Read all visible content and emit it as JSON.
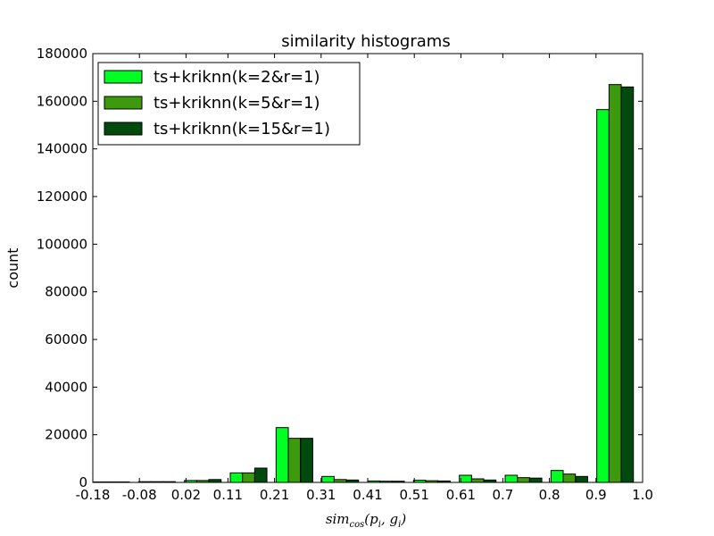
{
  "chart_data": {
    "type": "bar",
    "title": "similarity histograms",
    "xlabel": "sim_cos(p_i, g_i)",
    "xlabel_parts": {
      "base": "sim",
      "base_sub": "cos",
      "open": "(",
      "p": "p",
      "p_sub": "i",
      "comma": ", ",
      "g": "g",
      "g_sub": "i",
      "close": ")"
    },
    "ylabel": "count",
    "xlim": [
      -0.18,
      1.0
    ],
    "ylim": [
      0,
      180000
    ],
    "x_ticks": [
      -0.18,
      -0.08,
      0.02,
      0.11,
      0.21,
      0.31,
      0.41,
      0.51,
      0.61,
      0.7,
      0.8,
      0.9,
      1.0
    ],
    "x_tick_labels": [
      "-0.18",
      "-0.08",
      "0.02",
      "0.11",
      "0.21",
      "0.31",
      "0.41",
      "0.51",
      "0.61",
      "0.7",
      "0.8",
      "0.9",
      "1.0"
    ],
    "y_ticks": [
      0,
      20000,
      40000,
      60000,
      80000,
      100000,
      120000,
      140000,
      160000,
      180000
    ],
    "y_tick_labels": [
      "0",
      "20000",
      "40000",
      "60000",
      "80000",
      "100000",
      "120000",
      "140000",
      "160000",
      "180000"
    ],
    "grid": false,
    "legend_position": "top-left",
    "series": [
      {
        "name": "ts+kriknn(k=2&r=1)",
        "color": "#00ff22",
        "values": [
          200,
          300,
          800,
          4000,
          23000,
          2500,
          600,
          900,
          3000,
          3000,
          5000,
          156500
        ]
      },
      {
        "name": "ts+kriknn(k=5&r=1)",
        "color": "#3c9a0c",
        "values": [
          200,
          300,
          800,
          4000,
          18500,
          1200,
          500,
          700,
          1500,
          2000,
          3500,
          167000
        ]
      },
      {
        "name": "ts+kriknn(k=15&r=1)",
        "color": "#004a0e",
        "values": [
          200,
          300,
          1200,
          6000,
          18500,
          1000,
          500,
          600,
          1000,
          1800,
          2500,
          166000
        ]
      }
    ]
  }
}
